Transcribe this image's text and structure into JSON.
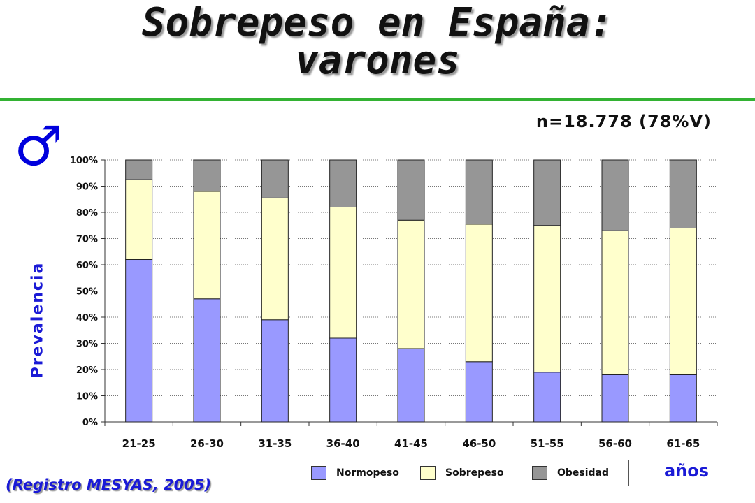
{
  "page": {
    "title_line1": "Sobrepeso en España:",
    "title_line2": "varones",
    "sample": "n=18.778 (78%V)",
    "male_symbol": "♂",
    "source": "(Registro MESYAS, 2005)"
  },
  "chart_data": {
    "type": "bar",
    "stacked": true,
    "title": "",
    "xlabel": "años",
    "ylabel": "Prevalencia",
    "ylim": [
      0,
      100
    ],
    "y_ticks": [
      "0%",
      "10%",
      "20%",
      "30%",
      "40%",
      "50%",
      "60%",
      "70%",
      "80%",
      "90%",
      "100%"
    ],
    "categories": [
      "21-25",
      "26-30",
      "31-35",
      "36-40",
      "41-45",
      "46-50",
      "51-55",
      "56-60",
      "61-65"
    ],
    "grid": true,
    "legend_position": "bottom",
    "series": [
      {
        "name": "Normopeso",
        "color": "#9999ff",
        "values": [
          62,
          47,
          39,
          32,
          28,
          23,
          19,
          18,
          18
        ]
      },
      {
        "name": "Sobrepeso",
        "color": "#ffffcc",
        "values": [
          30.5,
          41,
          46.5,
          50,
          49,
          52.5,
          56,
          55,
          56
        ]
      },
      {
        "name": "Obesidad",
        "color": "#969696",
        "values": [
          7.5,
          12,
          14.5,
          18,
          23,
          24.5,
          25,
          27,
          26
        ]
      }
    ]
  }
}
